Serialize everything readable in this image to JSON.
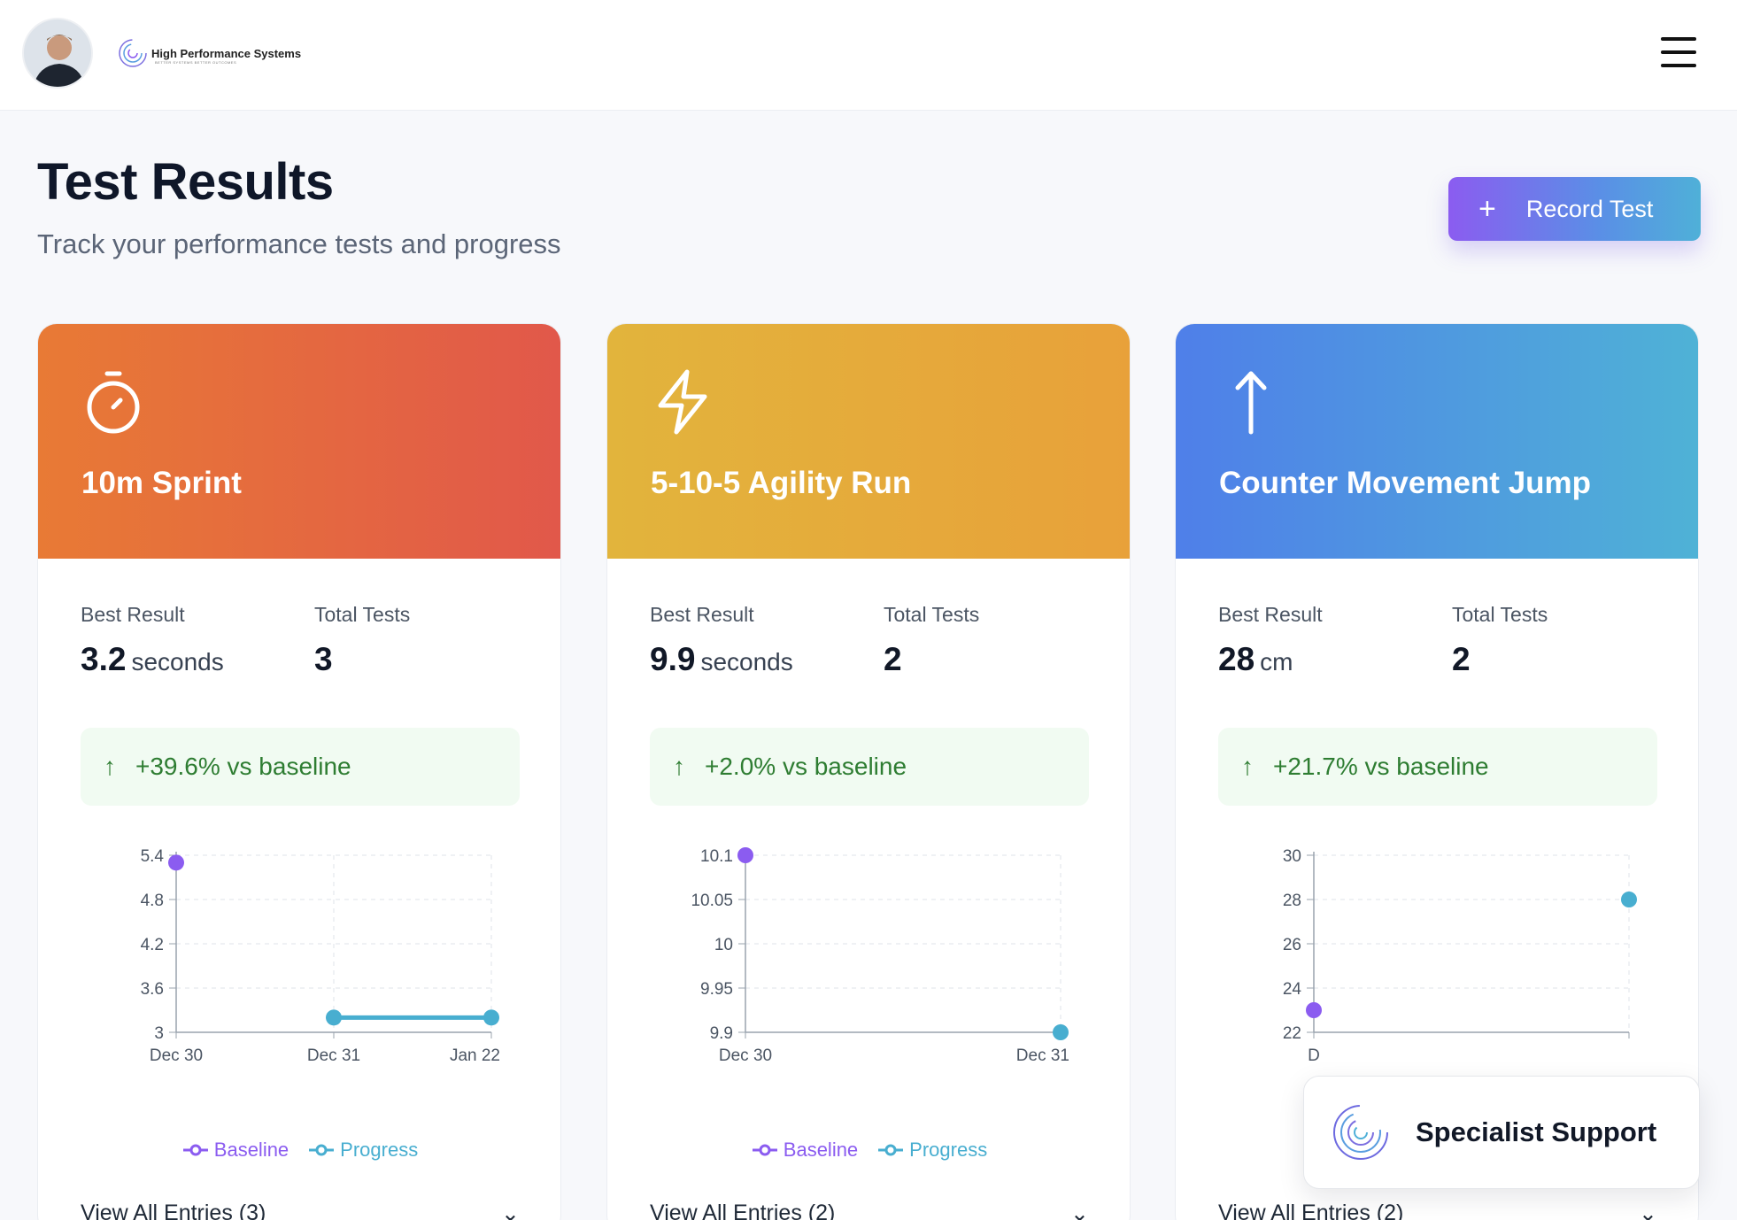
{
  "header": {
    "brand_name": "High Performance Systems",
    "brand_tagline": "BETTER SYSTEMS BETTER OUTCOMES"
  },
  "page": {
    "title": "Test Results",
    "subtitle": "Track your performance tests and progress",
    "record_button_label": "Record Test"
  },
  "labels": {
    "best_result": "Best Result",
    "total_tests": "Total Tests",
    "legend_baseline": "Baseline",
    "legend_progress": "Progress"
  },
  "colors": {
    "baseline": "#8b5cf0",
    "progress": "#48aed0",
    "delta_text": "#2e7d32"
  },
  "cards": [
    {
      "title": "10m Sprint",
      "icon": "stopwatch-icon",
      "best_value": "3.2",
      "best_unit": "seconds",
      "total_tests": "3",
      "delta": "+39.6% vs baseline",
      "entries_label": "View All Entries (3)"
    },
    {
      "title": "5-10-5 Agility Run",
      "icon": "lightning-icon",
      "best_value": "9.9",
      "best_unit": "seconds",
      "total_tests": "2",
      "delta": "+2.0% vs baseline",
      "entries_label": "View All Entries (2)"
    },
    {
      "title": "Counter Movement Jump",
      "icon": "arrow-up-icon",
      "best_value": "28",
      "best_unit": "cm",
      "total_tests": "2",
      "delta": "+21.7% vs baseline",
      "entries_label": "View All Entries (2)"
    }
  ],
  "chart_data": [
    {
      "type": "line",
      "x": [
        "Dec 30",
        "Dec 31",
        "Jan 22"
      ],
      "yticks": [
        "5.4",
        "4.8",
        "4.2",
        "3.6",
        "3"
      ],
      "ylim": [
        3,
        5.4
      ],
      "series": [
        {
          "name": "Baseline",
          "values": [
            5.3,
            null,
            null
          ]
        },
        {
          "name": "Progress",
          "values": [
            null,
            3.2,
            3.2
          ]
        }
      ]
    },
    {
      "type": "line",
      "x": [
        "Dec 30",
        "Dec 31"
      ],
      "yticks": [
        "10.1",
        "10.05",
        "10",
        "9.95",
        "9.9"
      ],
      "ylim": [
        9.9,
        10.1
      ],
      "series": [
        {
          "name": "Baseline",
          "values": [
            10.1,
            null
          ]
        },
        {
          "name": "Progress",
          "values": [
            null,
            9.9
          ]
        }
      ]
    },
    {
      "type": "line",
      "x": [
        "D",
        ""
      ],
      "yticks": [
        "30",
        "28",
        "26",
        "24",
        "22"
      ],
      "ylim": [
        22,
        30
      ],
      "series": [
        {
          "name": "Baseline",
          "values": [
            23,
            null
          ]
        },
        {
          "name": "Progress",
          "values": [
            null,
            28
          ]
        }
      ]
    }
  ],
  "support": {
    "label": "Specialist Support"
  }
}
